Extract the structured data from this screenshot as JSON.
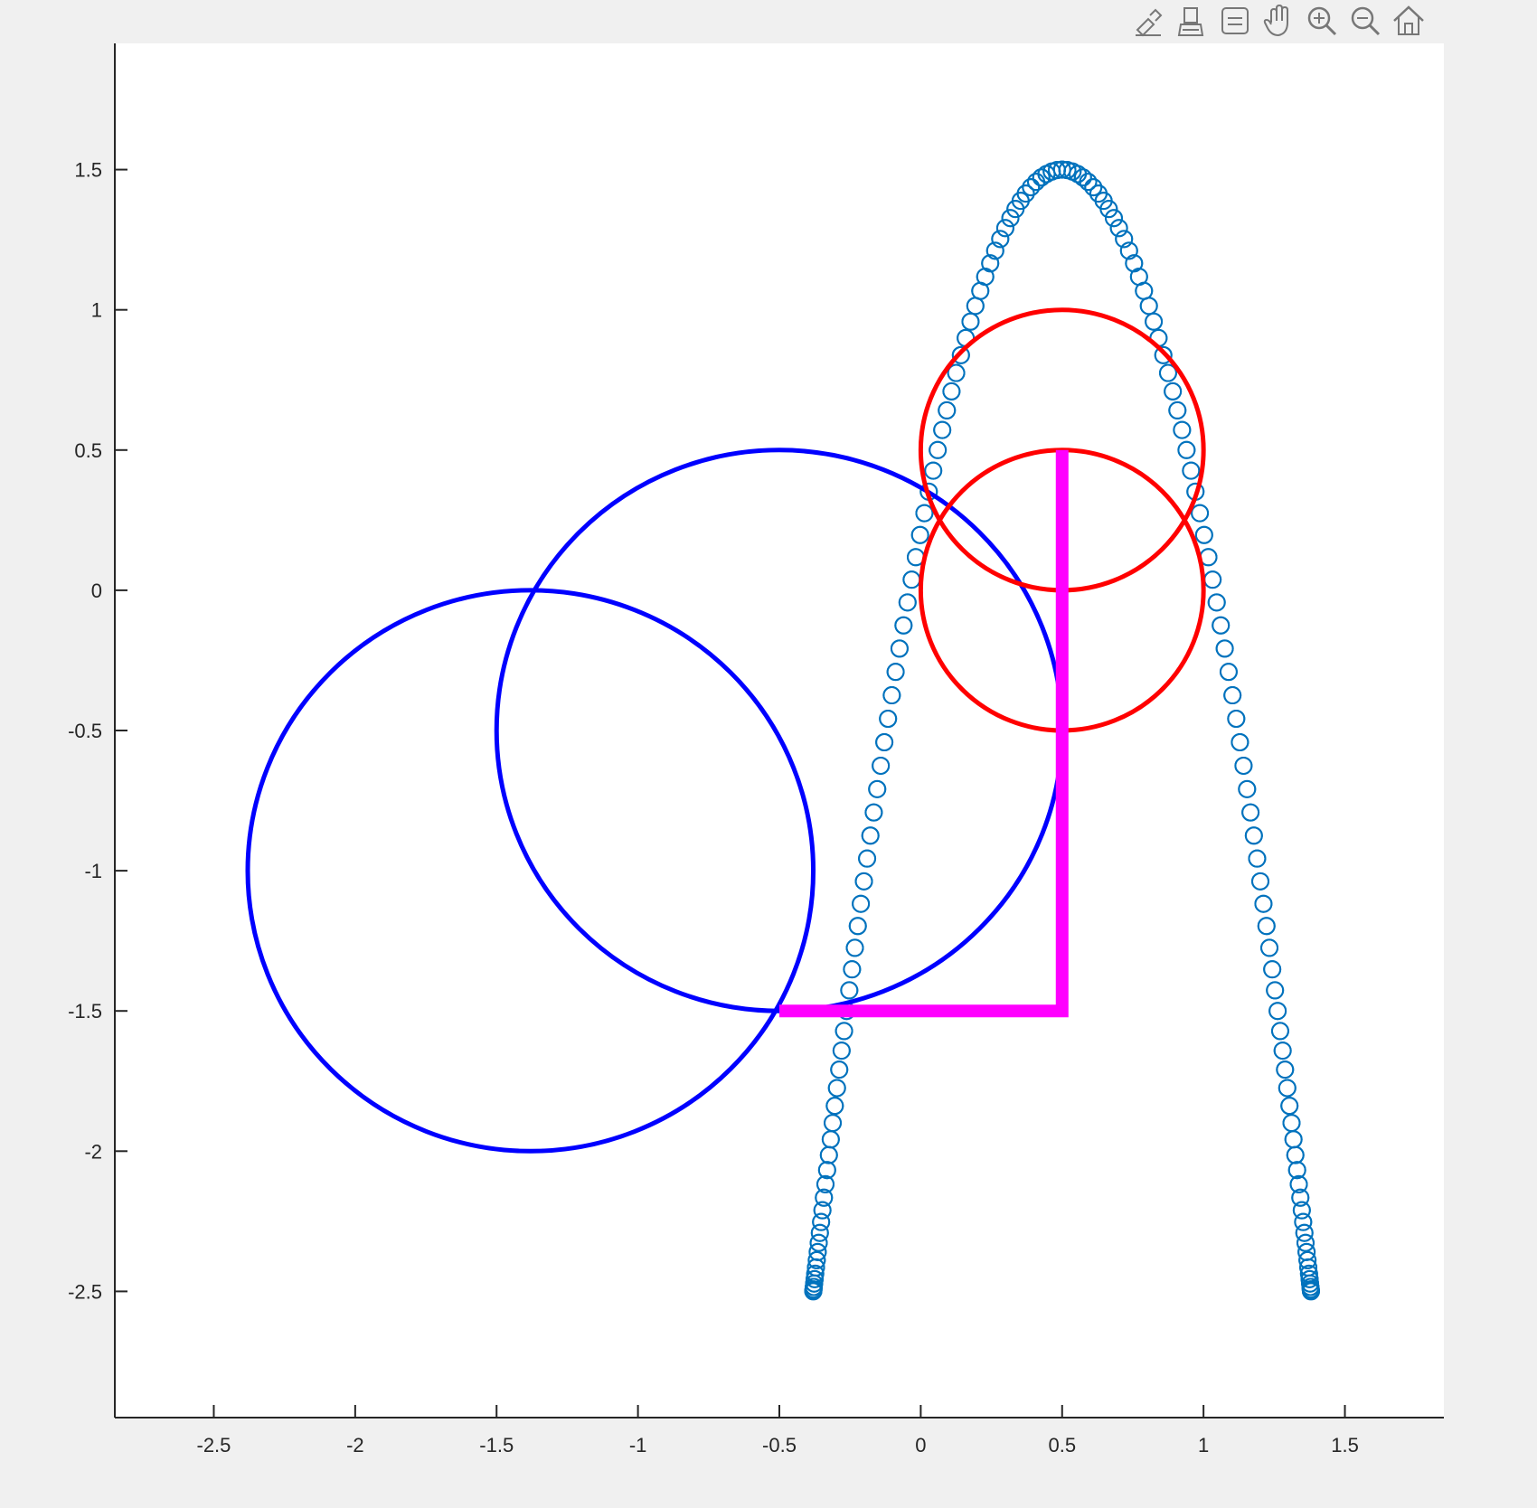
{
  "toolbar": {
    "buttons": [
      {
        "name": "brush-edit-icon"
      },
      {
        "name": "data-cursor-icon"
      },
      {
        "name": "datatip-icon"
      },
      {
        "name": "pan-hand-icon"
      },
      {
        "name": "zoom-in-icon"
      },
      {
        "name": "zoom-out-icon"
      },
      {
        "name": "home-icon"
      }
    ]
  },
  "chart_data": {
    "type": "scatter",
    "title": "",
    "xlabel": "",
    "ylabel": "",
    "xlim": [
      -2.85,
      1.85
    ],
    "ylim": [
      -2.95,
      1.95
    ],
    "grid": false,
    "xticks": [
      -2.5,
      -2,
      -1.5,
      -1,
      -0.5,
      0,
      0.5,
      1,
      1.5
    ],
    "xtick_labels": [
      "-2.5",
      "-2",
      "-1.5",
      "-1",
      "-0.5",
      "0",
      "0.5",
      "1",
      "1.5"
    ],
    "yticks": [
      1.5,
      1,
      0.5,
      0,
      -0.5,
      -1,
      -1.5,
      -2,
      -2.5
    ],
    "ytick_labels": [
      "1.5",
      "1",
      "0.5",
      "0",
      "-0.5",
      "-1",
      "-1.5",
      "-2",
      "-2.5"
    ],
    "series": [
      {
        "kind": "scatter_curve",
        "marker": "o",
        "color": "#0072bd",
        "x_equation": "x = 0.5 - 0.5*cos(t) + cos(2t) ... (Lissajous-like trace)",
        "parametric": {
          "x_center": 0.5,
          "x_amp": 0.88,
          "x_freq": 1,
          "y_center": -0.5,
          "y_amp": 2.0,
          "y_freq": 2,
          "count": 300
        }
      },
      {
        "kind": "circle",
        "color": "#0000ff",
        "cx": -1.38,
        "cy": -1.0,
        "r": 1.0
      },
      {
        "kind": "circle",
        "color": "#0000ff",
        "cx": -0.5,
        "cy": -0.5,
        "r": 1.0
      },
      {
        "kind": "circle",
        "color": "#ff0000",
        "cx": 0.5,
        "cy": 0.5,
        "r": 0.5
      },
      {
        "kind": "circle",
        "color": "#ff0000",
        "cx": 0.5,
        "cy": 0.0,
        "r": 0.5
      },
      {
        "kind": "polyline",
        "color": "#ff00ff",
        "points": [
          [
            -0.5,
            -1.5
          ],
          [
            0.5,
            -1.5
          ],
          [
            0.5,
            0.5
          ]
        ]
      }
    ]
  }
}
